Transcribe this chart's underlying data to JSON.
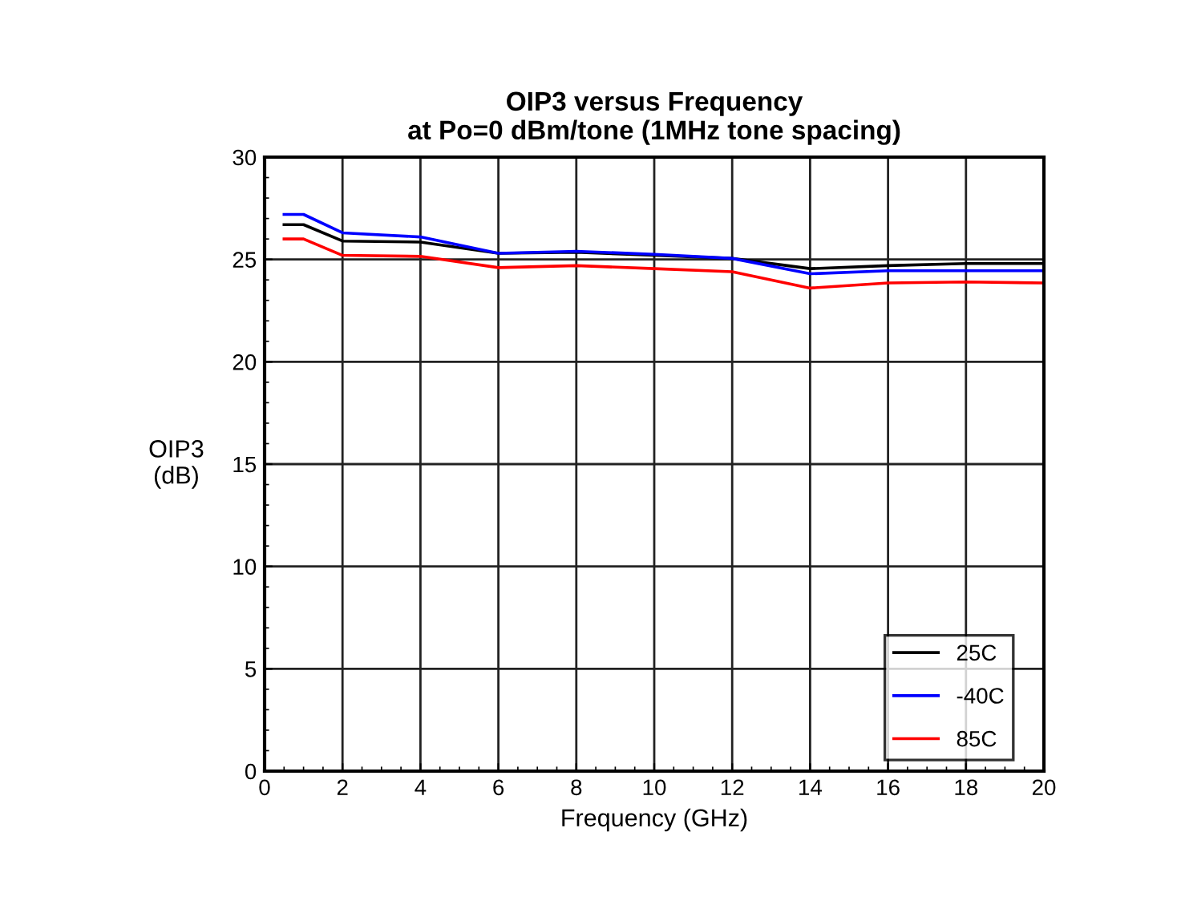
{
  "chart_data": {
    "type": "line",
    "title": "OIP3 versus Frequency\nat Po=0 dBm/tone (1MHz tone spacing)",
    "xlabel": "Frequency (GHz)",
    "ylabel": "OIP3\n(dB)",
    "x": [
      0.5,
      1,
      2,
      4,
      6,
      8,
      10,
      12,
      14,
      16,
      18,
      20
    ],
    "series": [
      {
        "name": "25C",
        "color": "#000000",
        "values": [
          26.7,
          26.7,
          25.9,
          25.85,
          25.3,
          25.35,
          25.2,
          25.05,
          24.55,
          24.7,
          24.8,
          24.8
        ]
      },
      {
        "name": "-40C",
        "color": "#0000ff",
        "values": [
          27.2,
          27.2,
          26.3,
          26.1,
          25.3,
          25.4,
          25.25,
          25.05,
          24.3,
          24.45,
          24.45,
          24.45
        ]
      },
      {
        "name": "85C",
        "color": "#ff0000",
        "values": [
          26.0,
          26.0,
          25.2,
          25.15,
          24.6,
          24.7,
          24.55,
          24.4,
          23.6,
          23.85,
          23.9,
          23.85
        ]
      }
    ],
    "xlim": [
      0,
      20
    ],
    "xticks": [
      0,
      2,
      4,
      6,
      8,
      10,
      12,
      14,
      16,
      18,
      20
    ],
    "ylim": [
      0,
      30
    ],
    "yticks": [
      0,
      5,
      10,
      15,
      20,
      25,
      30
    ],
    "grid": true,
    "legend": "bottom right",
    "line_style": "solid",
    "marker": "none"
  }
}
